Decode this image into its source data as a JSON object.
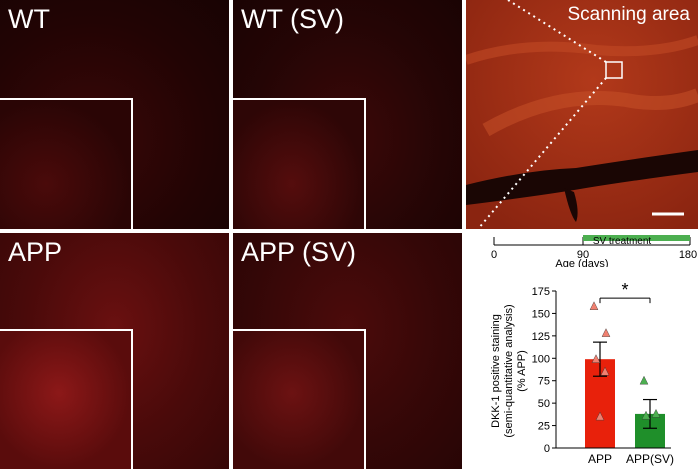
{
  "panels": {
    "wt": "WT",
    "wt_sv": "WT (SV)",
    "app": "APP",
    "app_sv": "APP (SV)",
    "scan": "Scanning area"
  },
  "timeline": {
    "ticks": [
      "0",
      "90",
      "180"
    ],
    "treatment_label": "SV treatment",
    "axis_label": "Age (days)",
    "treatment_color": "#4caf50"
  },
  "chart_data": {
    "type": "bar",
    "categories": [
      "APP",
      "APP(SV)"
    ],
    "values": [
      99,
      38
    ],
    "error": [
      19,
      16
    ],
    "points": [
      [
        158,
        128,
        99,
        85,
        35
      ],
      [
        75,
        38,
        36
      ]
    ],
    "colors": [
      "#e8210b",
      "#1f8f2a"
    ],
    "point_colors": [
      "#f08070",
      "#4caf50"
    ],
    "ylabel_lines": [
      "DKK-1 positive staining",
      "(semi-quantitative analysis)",
      "(% APP)"
    ],
    "yticks": [
      "0",
      "25",
      "50",
      "75",
      "100",
      "125",
      "150",
      "175"
    ],
    "ylim": [
      0,
      175
    ],
    "significance": "*"
  }
}
